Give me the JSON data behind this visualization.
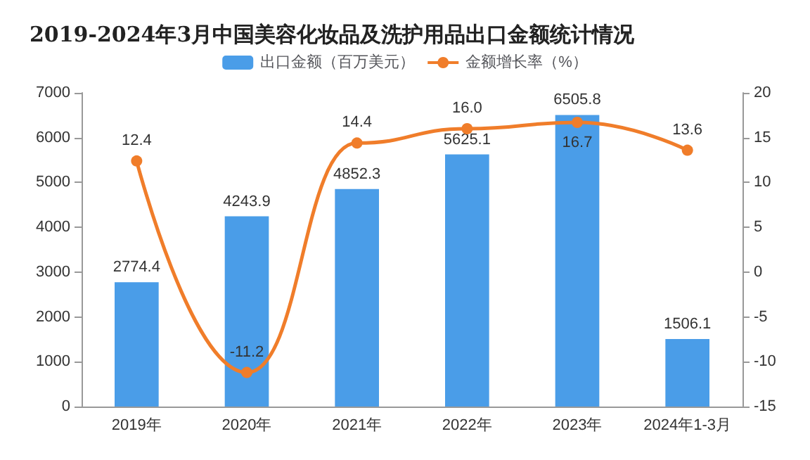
{
  "chart_data": {
    "type": "bar",
    "title": "2019-2024年3月中国美容化妆品及洗护用品出口金额统计情况",
    "categories": [
      "2019年",
      "2020年",
      "2021年",
      "2022年",
      "2023年",
      "2024年1-3月"
    ],
    "series": [
      {
        "name": "出口金额（百万美元）",
        "color": "#4a9de8",
        "values": [
          2774.4,
          4243.9,
          4852.3,
          5625.1,
          6505.8,
          1506.1
        ]
      },
      {
        "name": "金额增长率（%）",
        "type": "line",
        "axis": "y2",
        "color": "#f07d2a",
        "values": [
          12.4,
          -11.2,
          14.4,
          16.0,
          16.7,
          13.6
        ],
        "value_labels": [
          "12.4",
          "-11.2",
          "14.4",
          "16.0",
          "16.7",
          "13.6"
        ]
      }
    ],
    "ylim": [
      0,
      7000
    ],
    "yticks": [
      0,
      1000,
      2000,
      3000,
      4000,
      5000,
      6000,
      7000
    ],
    "y2lim": [
      -15,
      20
    ],
    "y2ticks": [
      -15,
      -10,
      -5,
      0,
      5,
      10,
      15,
      20
    ],
    "data_labels": true,
    "legend": "top",
    "grid": false,
    "marker": "circle"
  }
}
